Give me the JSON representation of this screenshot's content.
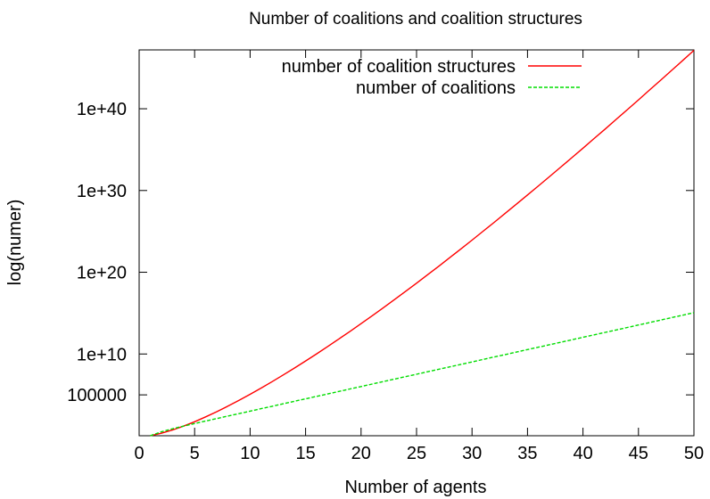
{
  "chart_data": {
    "type": "line",
    "title": "Number of coalitions and coalition structures",
    "xlabel": "Number of agents",
    "ylabel": "log(numer)",
    "y_scale": "log",
    "xlim": [
      1,
      50
    ],
    "ylim_exponent": [
      0,
      47.2
    ],
    "grid": false,
    "legend_position": "top-right",
    "x_ticks": [
      {
        "value": 0,
        "label": "0"
      },
      {
        "value": 5,
        "label": "5"
      },
      {
        "value": 10,
        "label": "10"
      },
      {
        "value": 15,
        "label": "15"
      },
      {
        "value": 20,
        "label": "20"
      },
      {
        "value": 25,
        "label": "25"
      },
      {
        "value": 30,
        "label": "30"
      },
      {
        "value": 35,
        "label": "35"
      },
      {
        "value": 40,
        "label": "40"
      },
      {
        "value": 45,
        "label": "45"
      },
      {
        "value": 50,
        "label": "50"
      }
    ],
    "y_ticks": [
      {
        "value": 100000,
        "label": "100000"
      },
      {
        "value": 10000000000.0,
        "label": "1e+10"
      },
      {
        "value": 1e+20,
        "label": "1e+20"
      },
      {
        "value": 1e+30,
        "label": "1e+30"
      },
      {
        "value": 1e+40,
        "label": "1e+40"
      }
    ],
    "series": [
      {
        "name": "number of coalition structures",
        "color": "#ff0000",
        "dash": "solid",
        "x": [
          1,
          2,
          3,
          4,
          5,
          6,
          7,
          8,
          9,
          10,
          11,
          12,
          13,
          14,
          15,
          16,
          17,
          18,
          19,
          20,
          21,
          22,
          23,
          24,
          25,
          26,
          27,
          28,
          29,
          30,
          31,
          32,
          33,
          34,
          35,
          36,
          37,
          38,
          39,
          40,
          41,
          42,
          43,
          44,
          45,
          46,
          47,
          48,
          49,
          50
        ],
        "y": [
          1,
          2,
          5,
          15,
          52,
          203,
          877,
          4140,
          21147,
          115975,
          678570,
          4213597,
          27644437,
          190899322,
          1382958545,
          10480142147.0,
          82864869804.0,
          682897960290.0,
          5832742288500.0,
          51724158236000.0,
          474490450820000.0,
          4506062458100000.0,
          4.4152005855e+16,
          4.4634106363e+17,
          4.6386641692e+18,
          4.9631246447e+19,
          5.4584710445e+20,
          6.1681651956e+21,
          7.1535640616e+22,
          8.5028436686e+23,
          1.0347134526e+25,
          1.2880523086e+26,
          1.6388957434e+27,
          2.1293732919e+28,
          2.8224368938e+29,
          3.8138350265e+30,
          5.2491633347e+31,
          7.3547079858e+32,
          1.0485697877e+34,
          1.5200956159e+35,
          2.2398480455e+36,
          3.3526440093e+37,
          5.0949468106e+38,
          7.8563195856e+39,
          1.2287398231e+41,
          1.9483935719e+42,
          3.1314720785e+43,
          5.0990955324e+44,
          8.4094742736e+45,
          1.4040154312e+47
        ]
      },
      {
        "name": "number of coalitions",
        "color": "#00dd00",
        "dash": "dashed",
        "x": [
          1,
          2,
          3,
          4,
          5,
          6,
          7,
          8,
          9,
          10,
          11,
          12,
          13,
          14,
          15,
          16,
          17,
          18,
          19,
          20,
          21,
          22,
          23,
          24,
          25,
          26,
          27,
          28,
          29,
          30,
          31,
          32,
          33,
          34,
          35,
          36,
          37,
          38,
          39,
          40,
          41,
          42,
          43,
          44,
          45,
          46,
          47,
          48,
          49,
          50
        ],
        "y": [
          1,
          3,
          7,
          15,
          31,
          63,
          127,
          255,
          511,
          1023,
          2047,
          4095,
          8191,
          16383,
          32767,
          65535,
          131071,
          262143,
          524287,
          1048575,
          2097151,
          4194303,
          8388607,
          16777215,
          33554431,
          67108863,
          134217727,
          268435455,
          536870911,
          1073741823,
          2147483647,
          4294967295,
          8589934591,
          17179869183,
          34359738367,
          68719476735,
          137438953471,
          274877906943,
          549755813887,
          1099511627775,
          2199023255551,
          4398046511103,
          8796093022207,
          17592186044415,
          35184372088831,
          70368744177663,
          140737488355327,
          281474976710655,
          562949953421311,
          1125899906842623
        ]
      }
    ]
  }
}
